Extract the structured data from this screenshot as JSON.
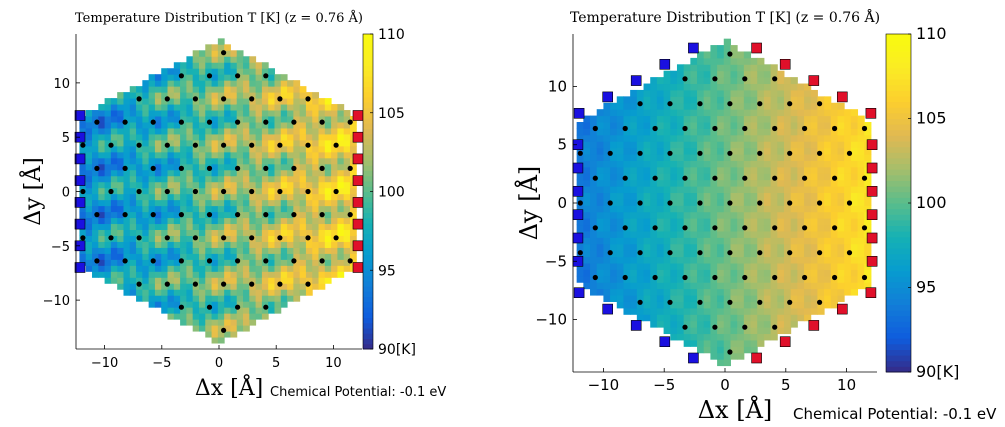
{
  "chart_data": [
    {
      "type": "heatmap",
      "title": "Temperature Distribution T [K] (z = 0.76 Å)",
      "xlabel": "Δx [Å]",
      "ylabel": "Δy [Å]",
      "annotation": "Chemical Potential: -0.1 eV",
      "xlim": [
        -12.5,
        12.5
      ],
      "ylim": [
        -14.5,
        14.5
      ],
      "xticks": [
        -10,
        -5,
        0,
        5,
        10
      ],
      "yticks": [
        -10,
        -5,
        0,
        5,
        10
      ],
      "xtick_labels": [
        "−10",
        "−5",
        "0",
        "5",
        "10"
      ],
      "ytick_labels": [
        "−10",
        "−5",
        "0",
        "5",
        "10"
      ],
      "colorbar": {
        "range": [
          90,
          110
        ],
        "ticks": [
          90,
          95,
          100,
          105,
          110
        ],
        "tick_labels": [
          "90[K]",
          "95",
          "100",
          "105",
          "110"
        ]
      },
      "grid": false,
      "region": "hexagon",
      "temperature_profile": {
        "left_edge_K": 95,
        "right_edge_K": 106,
        "pattern": "triangular lattice, hot centres / cold corners"
      },
      "lead_left_color": "#1a10e0",
      "lead_right_color": "#e0102a",
      "lead_left_y": [
        -7,
        -5,
        -3,
        -1,
        1,
        3,
        5,
        7
      ],
      "lead_right_y": [
        -7,
        -5,
        -3,
        -1,
        1,
        3,
        5,
        7
      ]
    },
    {
      "type": "heatmap",
      "title": "Temperature Distribution T [K] (z = 0.76 Å)",
      "xlabel": "Δx [Å]",
      "ylabel": "Δy [Å]",
      "annotation": "Chemical Potential: -0.1 eV",
      "xlim": [
        -12.5,
        12.5
      ],
      "ylim": [
        -14.5,
        14.5
      ],
      "xticks": [
        -10,
        -5,
        0,
        5,
        10
      ],
      "yticks": [
        -10,
        -5,
        0,
        5,
        10
      ],
      "xtick_labels": [
        "−10",
        "−5",
        "0",
        "5",
        "10"
      ],
      "ytick_labels": [
        "−10",
        "−5",
        "0",
        "5",
        "10"
      ],
      "colorbar": {
        "range": [
          90,
          110
        ],
        "ticks": [
          90,
          95,
          100,
          105,
          110
        ],
        "tick_labels": [
          "90[K]",
          "95",
          "100",
          "105",
          "110"
        ]
      },
      "grid": false,
      "region": "hexagon",
      "temperature_profile": {
        "left_edge_K": 94,
        "right_edge_K": 108,
        "pattern": "smooth left-to-right gradient"
      },
      "lead_left_color": "#1a10e0",
      "lead_right_color": "#e0102a",
      "lead_left_edge_count": 8,
      "lead_right_edge_count": 8
    }
  ],
  "colormap": "parula"
}
